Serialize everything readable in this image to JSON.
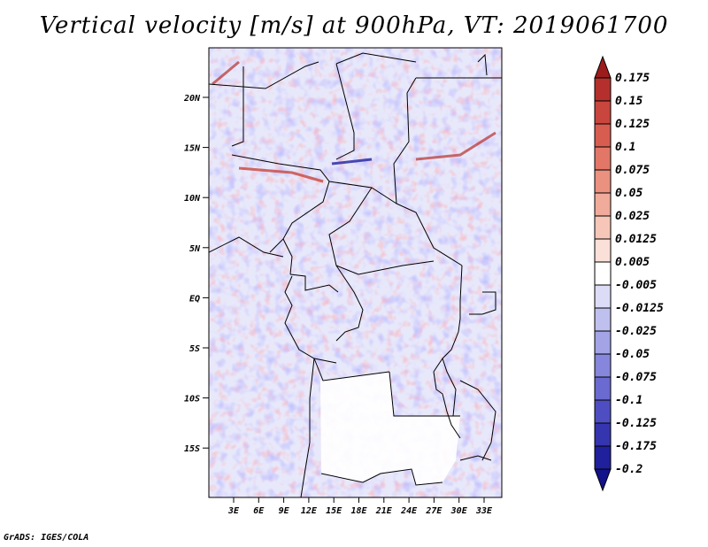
{
  "title": "Vertical velocity [m/s] at 900hPa, VT: 2019061700",
  "credit": "GrADS: IGES/COLA",
  "map": {
    "lat_labels": [
      "20N",
      "15N",
      "10N",
      "5N",
      "EQ",
      "5S",
      "10S",
      "15S"
    ],
    "lon_labels": [
      "3E",
      "6E",
      "9E",
      "12E",
      "15E",
      "18E",
      "21E",
      "24E",
      "27E",
      "30E",
      "33E"
    ],
    "lon_range": [
      0,
      35
    ],
    "lat_range": [
      -20,
      25
    ]
  },
  "colorbar": {
    "labels": [
      "0.175",
      "0.15",
      "0.125",
      "0.1",
      "0.075",
      "0.05",
      "0.025",
      "0.0125",
      "0.005",
      "-0.005",
      "-0.0125",
      "-0.025",
      "-0.05",
      "-0.075",
      "-0.1",
      "-0.125",
      "-0.175",
      "-0.2"
    ],
    "colors": [
      "#9c1c1c",
      "#b5302c",
      "#c8463d",
      "#d75d50",
      "#e27767",
      "#ea917f",
      "#f1ab9a",
      "#f6c6b8",
      "#fae0d8",
      "#ffffff",
      "#dcdcf6",
      "#c0c0ef",
      "#a3a3e6",
      "#8686dc",
      "#6a6ad0",
      "#4e4ec2",
      "#3535b0",
      "#20209c",
      "#12128a"
    ]
  }
}
